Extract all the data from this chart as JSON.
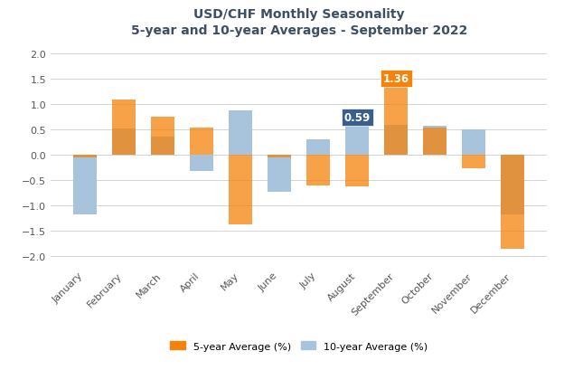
{
  "title_line1": "USD/CHF Monthly Seasonality",
  "title_line2": "5-year and 10-year Averages - September 2022",
  "months": [
    "January",
    "February",
    "March",
    "April",
    "May",
    "June",
    "July",
    "August",
    "September",
    "October",
    "November",
    "December"
  ],
  "five_year": [
    -0.05,
    1.1,
    0.75,
    0.54,
    -1.37,
    -0.05,
    -0.6,
    -0.62,
    1.36,
    0.54,
    -0.27,
    -1.85
  ],
  "ten_year": [
    -1.17,
    0.52,
    0.37,
    -0.32,
    0.88,
    -0.73,
    0.3,
    0.59,
    0.59,
    0.57,
    0.5,
    -1.18
  ],
  "color_5yr": "#F5820A",
  "color_10yr": "#A8C4DC",
  "color_title": "#3D4F60",
  "annotate_sep_5yr": "1.36",
  "annotate_aug_10yr": "0.59",
  "annotate_bg_5yr": "#F5820A",
  "annotate_bg_10yr": "#3A5F8A",
  "ylim": [
    -2.2,
    2.2
  ],
  "yticks": [
    -2.0,
    -1.5,
    -1.0,
    -0.5,
    0.0,
    0.5,
    1.0,
    1.5,
    2.0
  ],
  "bar_width": 0.6,
  "legend_5yr": "5-year Average (%)",
  "legend_10yr": "10-year Average (%)",
  "fig_width": 6.24,
  "fig_height": 4.1,
  "dpi": 100
}
